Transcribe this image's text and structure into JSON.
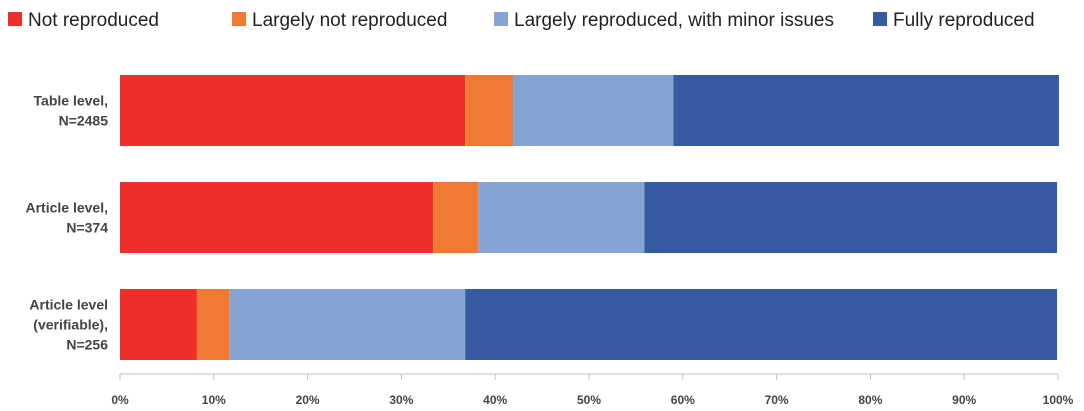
{
  "chart_data": {
    "type": "bar",
    "orientation": "horizontal",
    "stacked": true,
    "categories": [
      [
        "Table level,",
        "N=2485"
      ],
      [
        "Article level,",
        "N=374"
      ],
      [
        "Article level",
        "(verifiable),",
        "N=256"
      ]
    ],
    "series": [
      {
        "name": "Not reproduced",
        "color": "#EE2E2A",
        "values": [
          36.8,
          33.4,
          8.2
        ],
        "labels": [
          "36.8%",
          "33.4%",
          "8.2%"
        ]
      },
      {
        "name": "Largely not reproduced",
        "color": "#F07A33",
        "values": [
          5.1,
          4.8,
          3.5
        ],
        "labels": [
          "5.1%",
          "4.8%",
          "3.5%"
        ]
      },
      {
        "name": "Largely reproduced, with minor issues",
        "color": "#84A4D4",
        "values": [
          17.1,
          17.7,
          25.1
        ],
        "labels": [
          "17.1%",
          "17.7%",
          "25.1%"
        ]
      },
      {
        "name": "Fully reproduced",
        "color": "#375BA3",
        "values": [
          41.1,
          44.0,
          63.1
        ],
        "labels": [
          "41.1%",
          "44.0%",
          "63.1%"
        ]
      }
    ],
    "xlim": [
      0,
      100
    ],
    "x_ticks": [
      "0%",
      "10%",
      "20%",
      "30%",
      "40%",
      "50%",
      "60%",
      "70%",
      "80%",
      "90%",
      "100%"
    ],
    "legend_position": "top",
    "gridlines": false
  }
}
